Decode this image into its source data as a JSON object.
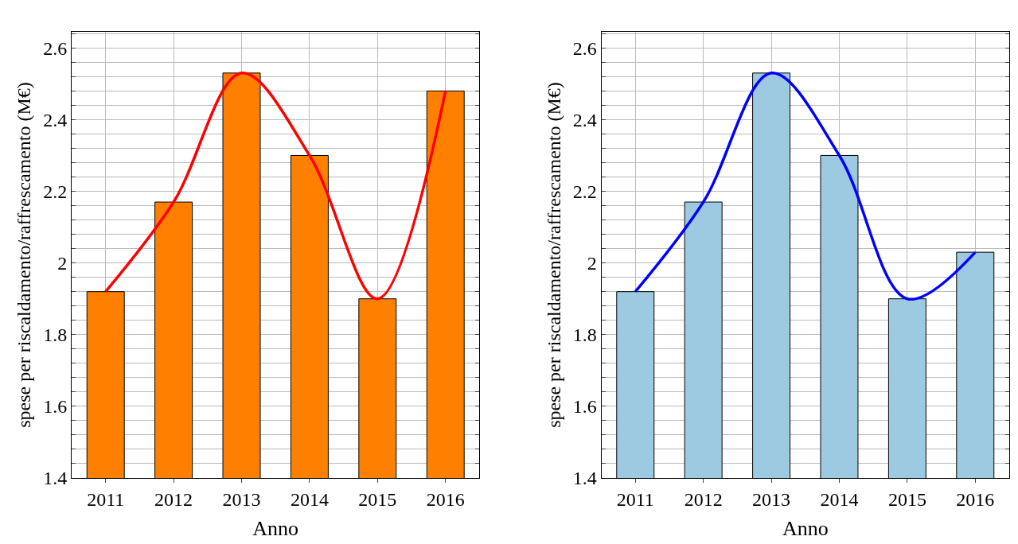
{
  "chart_data": [
    {
      "type": "bar",
      "xlabel": "Anno",
      "ylabel": "spese per riscaldamento/raffrescamento (M€)",
      "categories": [
        "2011",
        "2012",
        "2013",
        "2014",
        "2015",
        "2016"
      ],
      "series": [
        {
          "color": "#ff8000",
          "values": [
            1.92,
            2.17,
            2.53,
            2.3,
            1.9,
            2.48
          ]
        },
        {
          "type": "line",
          "color": "#ff0000",
          "values": [
            1.92,
            2.17,
            2.53,
            2.3,
            1.9,
            2.48
          ]
        }
      ],
      "ylim": [
        1.4,
        2.645
      ],
      "yticks": [
        1.4,
        {
          "value": 1.44,
          "label": null
        },
        {
          "value": 1.48,
          "label": null
        },
        {
          "value": 1.52,
          "label": null
        },
        {
          "value": 1.56,
          "label": null
        },
        1.6,
        {
          "value": 1.64,
          "label": null
        },
        {
          "value": 1.68,
          "label": null
        },
        {
          "value": 1.72,
          "label": null
        },
        {
          "value": 1.76,
          "label": null
        },
        1.8,
        {
          "value": 1.84,
          "label": null
        },
        {
          "value": 1.88,
          "label": null
        },
        {
          "value": 1.92,
          "label": null
        },
        {
          "value": 1.96,
          "label": null
        },
        2,
        {
          "value": 2.04,
          "label": null
        },
        {
          "value": 2.08,
          "label": null
        },
        {
          "value": 2.12,
          "label": null
        },
        {
          "value": 2.16,
          "label": null
        },
        2.2,
        {
          "value": 2.24,
          "label": null
        },
        {
          "value": 2.28,
          "label": null
        },
        {
          "value": 2.32,
          "label": null
        },
        {
          "value": 2.36,
          "label": null
        },
        2.4,
        {
          "value": 2.44,
          "label": null
        },
        {
          "value": 2.48,
          "label": null
        },
        {
          "value": 2.52,
          "label": null
        },
        {
          "value": 2.56,
          "label": null
        },
        2.6,
        {
          "value": 2.64,
          "label": null
        }
      ],
      "grid": true
    },
    {
      "type": "bar",
      "xlabel": "Anno",
      "ylabel": "spese per riscaldamento/raffrescamento (M€)",
      "categories": [
        "2011",
        "2012",
        "2013",
        "2014",
        "2015",
        "2016"
      ],
      "series": [
        {
          "color": "#9ecae1",
          "values": [
            1.92,
            2.17,
            2.53,
            2.3,
            1.9,
            2.03
          ]
        },
        {
          "type": "line",
          "color": "#0000ff",
          "values": [
            1.92,
            2.17,
            2.53,
            2.3,
            1.9,
            2.03
          ]
        }
      ],
      "ylim": [
        1.4,
        2.645
      ],
      "yticks": [
        1.4,
        {
          "value": 1.44,
          "label": null
        },
        {
          "value": 1.48,
          "label": null
        },
        {
          "value": 1.52,
          "label": null
        },
        {
          "value": 1.56,
          "label": null
        },
        1.6,
        {
          "value": 1.64,
          "label": null
        },
        {
          "value": 1.68,
          "label": null
        },
        {
          "value": 1.72,
          "label": null
        },
        {
          "value": 1.76,
          "label": null
        },
        1.8,
        {
          "value": 1.84,
          "label": null
        },
        {
          "value": 1.88,
          "label": null
        },
        {
          "value": 1.92,
          "label": null
        },
        {
          "value": 1.96,
          "label": null
        },
        2,
        {
          "value": 2.04,
          "label": null
        },
        {
          "value": 2.08,
          "label": null
        },
        {
          "value": 2.12,
          "label": null
        },
        {
          "value": 2.16,
          "label": null
        },
        2.2,
        {
          "value": 2.24,
          "label": null
        },
        {
          "value": 2.28,
          "label": null
        },
        {
          "value": 2.32,
          "label": null
        },
        {
          "value": 2.36,
          "label": null
        },
        2.4,
        {
          "value": 2.44,
          "label": null
        },
        {
          "value": 2.48,
          "label": null
        },
        {
          "value": 2.52,
          "label": null
        },
        {
          "value": 2.56,
          "label": null
        },
        2.6,
        {
          "value": 2.64,
          "label": null
        }
      ],
      "grid": true
    }
  ]
}
